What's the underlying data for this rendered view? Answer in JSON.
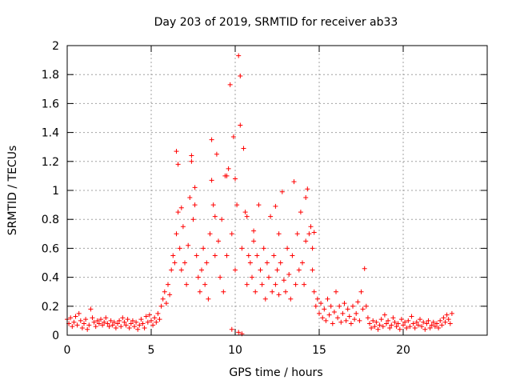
{
  "chart_data": {
    "type": "scatter",
    "title": "Day 203 of 2019, SRMTID for receiver ab33",
    "xlabel": "GPS time / hours",
    "ylabel": "SRMTID / TECUs",
    "xlim": [
      0,
      25
    ],
    "ylim": [
      0,
      2
    ],
    "x_ticks": [
      0,
      5,
      10,
      15,
      20
    ],
    "x_tick_labels": [
      "0",
      "5",
      "10",
      "15",
      "20"
    ],
    "y_ticks": [
      0,
      0.2,
      0.4,
      0.6,
      0.8,
      1,
      1.2,
      1.4,
      1.6,
      1.8,
      2
    ],
    "y_tick_labels": [
      "0",
      "0.2",
      "0.4",
      "0.6",
      "0.8",
      "1",
      "1.2",
      "1.4",
      "1.6",
      "1.8",
      "2"
    ],
    "grid": true,
    "marker": "+",
    "marker_color": "#ff0000",
    "series": [
      {
        "name": "SRMTID",
        "points": [
          [
            0.0,
            0.11
          ],
          [
            0.1,
            0.08
          ],
          [
            0.2,
            0.12
          ],
          [
            0.3,
            0.06
          ],
          [
            0.4,
            0.09
          ],
          [
            0.5,
            0.13
          ],
          [
            0.6,
            0.07
          ],
          [
            0.7,
            0.15
          ],
          [
            0.8,
            0.1
          ],
          [
            0.9,
            0.05
          ],
          [
            1.0,
            0.08
          ],
          [
            1.1,
            0.11
          ],
          [
            1.2,
            0.04
          ],
          [
            1.3,
            0.07
          ],
          [
            1.4,
            0.18
          ],
          [
            1.5,
            0.12
          ],
          [
            1.6,
            0.09
          ],
          [
            1.7,
            0.06
          ],
          [
            1.8,
            0.1
          ],
          [
            1.9,
            0.08
          ],
          [
            2.0,
            0.11
          ],
          [
            2.1,
            0.07
          ],
          [
            2.2,
            0.09
          ],
          [
            2.3,
            0.12
          ],
          [
            2.4,
            0.08
          ],
          [
            2.5,
            0.06
          ],
          [
            2.6,
            0.1
          ],
          [
            2.7,
            0.07
          ],
          [
            2.8,
            0.09
          ],
          [
            2.9,
            0.05
          ],
          [
            3.0,
            0.08
          ],
          [
            3.1,
            0.1
          ],
          [
            3.2,
            0.06
          ],
          [
            3.3,
            0.12
          ],
          [
            3.4,
            0.09
          ],
          [
            3.5,
            0.07
          ],
          [
            3.6,
            0.11
          ],
          [
            3.7,
            0.05
          ],
          [
            3.8,
            0.08
          ],
          [
            3.9,
            0.1
          ],
          [
            4.0,
            0.06
          ],
          [
            4.1,
            0.09
          ],
          [
            4.2,
            0.04
          ],
          [
            4.3,
            0.07
          ],
          [
            4.4,
            0.11
          ],
          [
            4.5,
            0.08
          ],
          [
            4.6,
            0.05
          ],
          [
            4.7,
            0.13
          ],
          [
            4.8,
            0.09
          ],
          [
            4.9,
            0.14
          ],
          [
            5.0,
            0.1
          ],
          [
            5.1,
            0.07
          ],
          [
            5.2,
            0.12
          ],
          [
            5.3,
            0.09
          ],
          [
            5.4,
            0.15
          ],
          [
            5.5,
            0.11
          ],
          [
            5.6,
            0.2
          ],
          [
            5.7,
            0.25
          ],
          [
            5.8,
            0.3
          ],
          [
            5.9,
            0.22
          ],
          [
            6.0,
            0.35
          ],
          [
            6.1,
            0.28
          ],
          [
            6.2,
            0.45
          ],
          [
            6.3,
            0.55
          ],
          [
            6.4,
            0.5
          ],
          [
            6.5,
            0.7
          ],
          [
            6.6,
            0.85
          ],
          [
            6.7,
            0.6
          ],
          [
            6.8,
            0.45
          ],
          [
            6.9,
            0.75
          ],
          [
            7.0,
            0.5
          ],
          [
            7.1,
            0.35
          ],
          [
            7.2,
            0.62
          ],
          [
            7.3,
            0.95
          ],
          [
            7.4,
            1.2
          ],
          [
            7.5,
            0.8
          ],
          [
            7.6,
            1.02
          ],
          [
            7.7,
            0.55
          ],
          [
            7.8,
            0.4
          ],
          [
            7.9,
            0.3
          ],
          [
            8.0,
            0.45
          ],
          [
            8.1,
            0.6
          ],
          [
            8.2,
            0.35
          ],
          [
            8.3,
            0.5
          ],
          [
            8.4,
            0.25
          ],
          [
            8.5,
            0.7
          ],
          [
            8.6,
            1.35
          ],
          [
            8.7,
            0.9
          ],
          [
            8.8,
            0.55
          ],
          [
            8.9,
            1.25
          ],
          [
            9.0,
            0.65
          ],
          [
            9.1,
            0.4
          ],
          [
            9.2,
            0.8
          ],
          [
            9.3,
            0.3
          ],
          [
            9.4,
            1.1
          ],
          [
            9.5,
            0.55
          ],
          [
            9.6,
            1.15
          ],
          [
            9.7,
            1.73
          ],
          [
            9.8,
            0.7
          ],
          [
            9.9,
            1.37
          ],
          [
            10.0,
            0.45
          ],
          [
            10.1,
            0.9
          ],
          [
            10.2,
            1.93
          ],
          [
            10.3,
            1.45
          ],
          [
            10.4,
            0.6
          ],
          [
            10.5,
            1.29
          ],
          [
            10.6,
            0.85
          ],
          [
            10.7,
            0.35
          ],
          [
            10.8,
            0.55
          ],
          [
            10.9,
            0.5
          ],
          [
            11.0,
            0.4
          ],
          [
            11.1,
            0.65
          ],
          [
            11.2,
            0.3
          ],
          [
            11.3,
            0.55
          ],
          [
            11.4,
            0.9
          ],
          [
            11.5,
            0.45
          ],
          [
            11.6,
            0.35
          ],
          [
            11.7,
            0.6
          ],
          [
            11.8,
            0.25
          ],
          [
            11.9,
            0.5
          ],
          [
            12.0,
            0.4
          ],
          [
            12.1,
            0.82
          ],
          [
            12.2,
            0.3
          ],
          [
            12.3,
            0.55
          ],
          [
            12.4,
            0.35
          ],
          [
            12.5,
            0.45
          ],
          [
            12.6,
            0.28
          ],
          [
            12.7,
            0.5
          ],
          [
            12.8,
            0.99
          ],
          [
            12.9,
            0.38
          ],
          [
            13.0,
            0.3
          ],
          [
            13.1,
            0.6
          ],
          [
            13.2,
            0.42
          ],
          [
            13.3,
            0.25
          ],
          [
            13.4,
            0.55
          ],
          [
            13.5,
            1.06
          ],
          [
            13.6,
            0.35
          ],
          [
            13.7,
            0.7
          ],
          [
            13.8,
            0.45
          ],
          [
            13.9,
            0.85
          ],
          [
            14.0,
            0.5
          ],
          [
            14.1,
            0.35
          ],
          [
            14.2,
            0.65
          ],
          [
            14.3,
            1.01
          ],
          [
            14.4,
            0.7
          ],
          [
            14.5,
            0.75
          ],
          [
            14.6,
            0.45
          ],
          [
            14.7,
            0.3
          ],
          [
            14.8,
            0.2
          ],
          [
            14.9,
            0.25
          ],
          [
            15.0,
            0.15
          ],
          [
            15.1,
            0.22
          ],
          [
            15.2,
            0.12
          ],
          [
            15.3,
            0.18
          ],
          [
            15.4,
            0.1
          ],
          [
            15.5,
            0.25
          ],
          [
            15.6,
            0.14
          ],
          [
            15.7,
            0.2
          ],
          [
            15.8,
            0.08
          ],
          [
            15.9,
            0.16
          ],
          [
            16.0,
            0.3
          ],
          [
            16.1,
            0.12
          ],
          [
            16.2,
            0.2
          ],
          [
            16.3,
            0.09
          ],
          [
            16.4,
            0.15
          ],
          [
            16.5,
            0.22
          ],
          [
            16.6,
            0.1
          ],
          [
            16.7,
            0.18
          ],
          [
            16.8,
            0.13
          ],
          [
            16.9,
            0.08
          ],
          [
            17.0,
            0.2
          ],
          [
            17.1,
            0.11
          ],
          [
            17.2,
            0.15
          ],
          [
            17.3,
            0.23
          ],
          [
            17.4,
            0.1
          ],
          [
            17.5,
            0.3
          ],
          [
            17.6,
            0.18
          ],
          [
            17.7,
            0.46
          ],
          [
            17.8,
            0.2
          ],
          [
            17.9,
            0.12
          ],
          [
            18.0,
            0.08
          ],
          [
            18.1,
            0.05
          ],
          [
            18.2,
            0.1
          ],
          [
            18.3,
            0.06
          ],
          [
            18.4,
            0.09
          ],
          [
            18.5,
            0.04
          ],
          [
            18.6,
            0.07
          ],
          [
            18.7,
            0.11
          ],
          [
            18.8,
            0.06
          ],
          [
            18.9,
            0.14
          ],
          [
            19.0,
            0.08
          ],
          [
            19.1,
            0.1
          ],
          [
            19.2,
            0.05
          ],
          [
            19.3,
            0.07
          ],
          [
            19.4,
            0.12
          ],
          [
            19.5,
            0.09
          ],
          [
            19.6,
            0.06
          ],
          [
            19.7,
            0.08
          ],
          [
            19.8,
            0.04
          ],
          [
            19.9,
            0.11
          ],
          [
            20.0,
            0.07
          ],
          [
            20.1,
            0.09
          ],
          [
            20.2,
            0.05
          ],
          [
            20.3,
            0.1
          ],
          [
            20.4,
            0.06
          ],
          [
            20.5,
            0.13
          ],
          [
            20.6,
            0.08
          ],
          [
            20.7,
            0.05
          ],
          [
            20.8,
            0.09
          ],
          [
            20.9,
            0.07
          ],
          [
            21.0,
            0.11
          ],
          [
            21.1,
            0.06
          ],
          [
            21.2,
            0.09
          ],
          [
            21.3,
            0.04
          ],
          [
            21.4,
            0.08
          ],
          [
            21.5,
            0.1
          ],
          [
            21.6,
            0.05
          ],
          [
            21.7,
            0.07
          ],
          [
            21.8,
            0.09
          ],
          [
            21.9,
            0.06
          ],
          [
            22.0,
            0.08
          ],
          [
            22.1,
            0.05
          ],
          [
            22.2,
            0.1
          ],
          [
            22.3,
            0.07
          ],
          [
            22.4,
            0.12
          ],
          [
            22.5,
            0.09
          ],
          [
            22.6,
            0.14
          ],
          [
            22.7,
            0.11
          ],
          [
            22.8,
            0.08
          ],
          [
            22.9,
            0.15
          ],
          [
            6.5,
            1.27
          ],
          [
            6.6,
            1.18
          ],
          [
            7.4,
            1.24
          ],
          [
            8.6,
            1.07
          ],
          [
            9.5,
            1.1
          ],
          [
            10.0,
            1.08
          ],
          [
            10.3,
            1.79
          ],
          [
            10.7,
            0.82
          ],
          [
            12.4,
            0.89
          ],
          [
            14.2,
            0.95
          ],
          [
            9.8,
            0.04
          ],
          [
            10.2,
            0.02
          ],
          [
            10.4,
            0.01
          ],
          [
            14.6,
            0.6
          ],
          [
            14.7,
            0.71
          ],
          [
            6.8,
            0.88
          ],
          [
            7.6,
            0.9
          ],
          [
            8.8,
            0.82
          ],
          [
            11.1,
            0.72
          ],
          [
            12.6,
            0.7
          ]
        ]
      }
    ]
  }
}
